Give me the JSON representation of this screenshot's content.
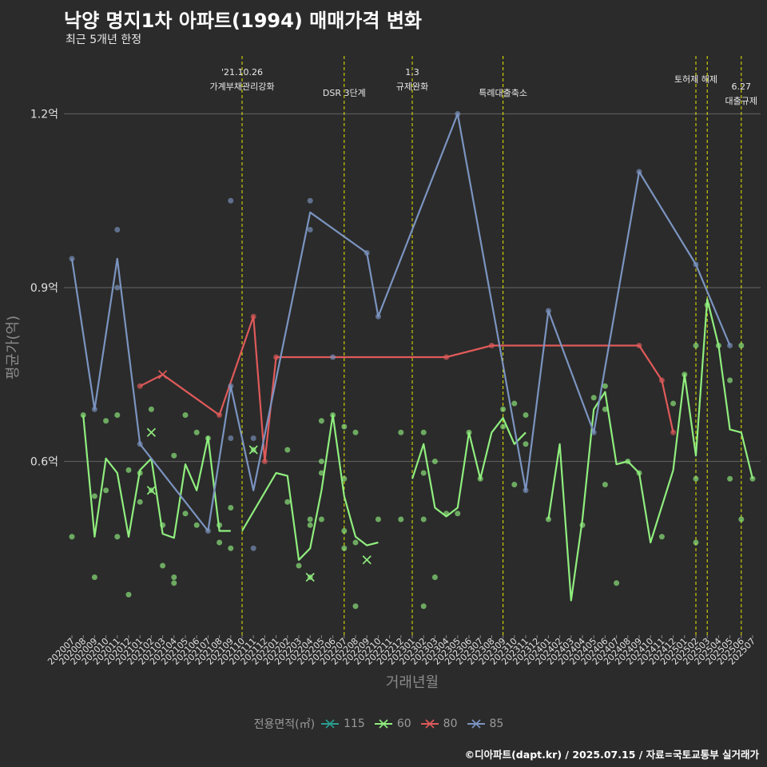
{
  "title": "낙양 명지1차 아파트(1994) 매매가격 변화",
  "subtitle": "최근 5개년 한정",
  "caption": "©디아파트(dapt.kr) / 2025.07.15 / 자료=국토교통부 실거래가",
  "legend_title": "전용면적(㎡)",
  "chart_data": {
    "type": "line",
    "xlabel": "거래년월",
    "ylabel": "평균가(억)",
    "ylim": [
      0.3,
      1.3
    ],
    "y_ticks": [
      {
        "value": 0.6,
        "label": "0.6억"
      },
      {
        "value": 0.9,
        "label": "0.9억"
      },
      {
        "value": 1.2,
        "label": "1.2억"
      }
    ],
    "grid": true,
    "legend_position": "bottom",
    "categories": [
      "202007",
      "202008",
      "202009",
      "202010",
      "202011",
      "202012",
      "202101",
      "202102",
      "202103",
      "202104",
      "202105",
      "202106",
      "202107",
      "202108",
      "202109",
      "202110",
      "202111",
      "202112",
      "202201",
      "202202",
      "202203",
      "202204",
      "202205",
      "202206",
      "202207",
      "202208",
      "202209",
      "202210",
      "202211",
      "202212",
      "202301",
      "202302",
      "202303",
      "202304",
      "202305",
      "202306",
      "202307",
      "202308",
      "202309",
      "202310",
      "202311",
      "202312",
      "202401",
      "202402",
      "202403",
      "202404",
      "202405",
      "202406",
      "202407",
      "202408",
      "202409",
      "202410",
      "202411",
      "202412",
      "202501",
      "202502",
      "202503",
      "202504",
      "202505",
      "202506",
      "202507"
    ],
    "events": [
      {
        "x": "202110",
        "label1": "'21.10.26",
        "label2": "가계부채관리강화"
      },
      {
        "x": "202207",
        "label1": "",
        "label2": "DSR 3단계"
      },
      {
        "x": "202301",
        "label1": "1.3",
        "label2": "규제완화"
      },
      {
        "x": "202309",
        "label1": "",
        "label2": "특례대출축소"
      },
      {
        "x": "202502",
        "label1": "",
        "label2": "토허제 해제"
      },
      {
        "x": "202503",
        "label1": "",
        "label2": ""
      },
      {
        "x": "202506",
        "label1": "6.27",
        "label2": "대출규제"
      }
    ],
    "series": [
      {
        "name": "115",
        "color": "#2a9d8f",
        "line": [],
        "points": [],
        "cancelled": []
      },
      {
        "name": "60",
        "color": "#90ee7e",
        "line": [
          [
            "202008",
            0.68
          ],
          [
            "202009",
            0.47
          ],
          [
            "202010",
            0.605
          ],
          [
            "202011",
            0.58
          ],
          [
            "202012",
            0.47
          ],
          [
            "202101",
            0.585
          ],
          [
            "202102",
            0.605
          ],
          [
            "202103",
            0.475
          ],
          [
            "202104",
            0.468
          ],
          [
            "202105",
            0.595
          ],
          [
            "202106",
            0.55
          ],
          [
            "202107",
            0.642
          ],
          [
            "202108",
            0.48
          ],
          [
            "202109",
            0.48
          ],
          [
            null,
            null
          ],
          [
            "202110",
            0.48
          ],
          [
            "202201",
            0.58
          ],
          [
            "202202",
            0.575
          ],
          [
            "202203",
            0.43
          ],
          [
            "202204",
            0.45
          ],
          [
            "202205",
            0.55
          ],
          [
            "202206",
            0.68
          ],
          [
            "202207",
            0.54
          ],
          [
            "202208",
            0.47
          ],
          [
            "202209",
            0.455
          ],
          [
            "202210",
            0.46
          ],
          [
            null,
            null
          ],
          [
            "202301",
            0.57
          ],
          [
            "202302",
            0.63
          ],
          [
            "202303",
            0.52
          ],
          [
            "202304",
            0.505
          ],
          [
            "202305",
            0.52
          ],
          [
            "202306",
            0.65
          ],
          [
            "202307",
            0.57
          ],
          [
            "202308",
            0.65
          ],
          [
            "202309",
            0.675
          ],
          [
            "202310",
            0.63
          ],
          [
            "202311",
            0.65
          ],
          [
            null,
            null
          ],
          [
            "202401",
            0.5
          ],
          [
            "202402",
            0.63
          ],
          [
            "202403",
            0.36
          ],
          [
            "202404",
            0.5
          ],
          [
            "202405",
            0.69
          ],
          [
            "202406",
            0.72
          ],
          [
            "202407",
            0.595
          ],
          [
            "202408",
            0.6
          ],
          [
            "202409",
            0.58
          ],
          [
            "202410",
            0.46
          ],
          [
            "202412",
            0.585
          ],
          [
            "202501",
            0.75
          ],
          [
            "202502",
            0.61
          ],
          [
            "202503",
            0.88
          ],
          [
            "202504",
            0.8
          ],
          [
            "202505",
            0.655
          ],
          [
            "202506",
            0.65
          ],
          [
            "202507",
            0.57
          ]
        ],
        "points": [
          [
            "202007",
            0.47
          ],
          [
            "202008",
            0.68
          ],
          [
            "202009",
            0.54
          ],
          [
            "202009",
            0.4
          ],
          [
            "202010",
            0.67
          ],
          [
            "202010",
            0.55
          ],
          [
            "202011",
            0.68
          ],
          [
            "202011",
            0.47
          ],
          [
            "202012",
            0.37
          ],
          [
            "202012",
            0.585
          ],
          [
            "202101",
            0.58
          ],
          [
            "202101",
            0.53
          ],
          [
            "202102",
            0.55
          ],
          [
            "202102",
            0.69
          ],
          [
            "202103",
            0.49
          ],
          [
            "202103",
            0.42
          ],
          [
            "202104",
            0.61
          ],
          [
            "202104",
            0.39
          ],
          [
            "202104",
            0.4
          ],
          [
            "202105",
            0.68
          ],
          [
            "202105",
            0.51
          ],
          [
            "202106",
            0.49
          ],
          [
            "202106",
            0.65
          ],
          [
            "202107",
            0.64
          ],
          [
            "202108",
            0.46
          ],
          [
            "202108",
            0.49
          ],
          [
            "202109",
            0.45
          ],
          [
            "202109",
            0.52
          ],
          [
            "202111",
            0.62
          ],
          [
            "202202",
            0.62
          ],
          [
            "202202",
            0.53
          ],
          [
            "202203",
            0.42
          ],
          [
            "202204",
            0.5
          ],
          [
            "202204",
            0.49
          ],
          [
            "202204",
            0.4
          ],
          [
            "202205",
            0.58
          ],
          [
            "202205",
            0.6
          ],
          [
            "202205",
            0.67
          ],
          [
            "202205",
            0.5
          ],
          [
            "202206",
            0.68
          ],
          [
            "202207",
            0.57
          ],
          [
            "202207",
            0.45
          ],
          [
            "202207",
            0.48
          ],
          [
            "202207",
            0.66
          ],
          [
            "202208",
            0.65
          ],
          [
            "202208",
            0.35
          ],
          [
            "202208",
            0.46
          ],
          [
            "202210",
            0.5
          ],
          [
            "202212",
            0.5
          ],
          [
            "202212",
            0.65
          ],
          [
            "202302",
            0.65
          ],
          [
            "202302",
            0.58
          ],
          [
            "202302",
            0.35
          ],
          [
            "202302",
            0.5
          ],
          [
            "202303",
            0.6
          ],
          [
            "202303",
            0.4
          ],
          [
            "202304",
            0.51
          ],
          [
            "202305",
            0.51
          ],
          [
            "202306",
            0.65
          ],
          [
            "202307",
            0.57
          ],
          [
            "202309",
            0.69
          ],
          [
            "202309",
            0.66
          ],
          [
            "202310",
            0.7
          ],
          [
            "202310",
            0.56
          ],
          [
            "202311",
            0.68
          ],
          [
            "202311",
            0.63
          ],
          [
            "202401",
            0.5
          ],
          [
            "202404",
            0.49
          ],
          [
            "202405",
            0.71
          ],
          [
            "202406",
            0.73
          ],
          [
            "202406",
            0.69
          ],
          [
            "202406",
            0.56
          ],
          [
            "202407",
            0.39
          ],
          [
            "202408",
            0.6
          ],
          [
            "202409",
            0.58
          ],
          [
            "202411",
            0.47
          ],
          [
            "202412",
            0.7
          ],
          [
            "202501",
            0.75
          ],
          [
            "202502",
            0.8
          ],
          [
            "202502",
            0.57
          ],
          [
            "202502",
            0.46
          ],
          [
            "202503",
            0.87
          ],
          [
            "202504",
            0.8
          ],
          [
            "202505",
            0.74
          ],
          [
            "202505",
            0.57
          ],
          [
            "202506",
            0.8
          ],
          [
            "202506",
            0.5
          ],
          [
            "202507",
            0.57
          ]
        ],
        "cancelled": [
          [
            "202102",
            0.65
          ],
          [
            "202102",
            0.55
          ],
          [
            "202111",
            0.62
          ],
          [
            "202204",
            0.4
          ],
          [
            "202209",
            0.43
          ]
        ]
      },
      {
        "name": "80",
        "color": "#e05a5a",
        "line": [
          [
            "202101",
            0.73
          ],
          [
            "202103",
            0.75
          ],
          [
            "202108",
            0.68
          ],
          [
            "202111",
            0.85
          ],
          [
            "202112",
            0.6
          ],
          [
            "202201",
            0.78
          ],
          [
            "202304",
            0.78
          ],
          [
            "202308",
            0.8
          ],
          [
            "202409",
            0.8
          ],
          [
            "202411",
            0.74
          ],
          [
            "202412",
            0.65
          ]
        ],
        "points": [
          [
            "202101",
            0.73
          ],
          [
            "202108",
            0.68
          ],
          [
            "202111",
            0.85
          ],
          [
            "202112",
            0.6
          ],
          [
            "202201",
            0.78
          ],
          [
            "202304",
            0.78
          ],
          [
            "202308",
            0.8
          ],
          [
            "202409",
            0.8
          ],
          [
            "202411",
            0.74
          ],
          [
            "202412",
            0.65
          ]
        ],
        "cancelled": [
          [
            "202103",
            0.75
          ]
        ]
      },
      {
        "name": "85",
        "color": "#7b94c0",
        "line": [
          [
            "202007",
            0.95
          ],
          [
            "202009",
            0.69
          ],
          [
            "202011",
            0.95
          ],
          [
            "202101",
            0.63
          ],
          [
            "202107",
            0.48
          ],
          [
            "202109",
            0.73
          ],
          [
            "202111",
            0.55
          ],
          [
            "202204",
            1.03
          ],
          [
            "202209",
            0.96
          ],
          [
            "202210",
            0.85
          ],
          [
            "202305",
            1.2
          ],
          [
            "202311",
            0.55
          ],
          [
            "202401",
            0.86
          ],
          [
            "202405",
            0.65
          ],
          [
            "202409",
            1.1
          ],
          [
            "202502",
            0.94
          ],
          [
            "202505",
            0.8
          ]
        ],
        "points": [
          [
            "202007",
            0.95
          ],
          [
            "202009",
            0.69
          ],
          [
            "202011",
            1.0
          ],
          [
            "202011",
            0.9
          ],
          [
            "202101",
            0.63
          ],
          [
            "202107",
            0.48
          ],
          [
            "202109",
            1.05
          ],
          [
            "202109",
            0.64
          ],
          [
            "202109",
            0.73
          ],
          [
            "202111",
            0.64
          ],
          [
            "202111",
            0.45
          ],
          [
            "202204",
            1.05
          ],
          [
            "202204",
            1.0
          ],
          [
            "202206",
            0.78
          ],
          [
            "202209",
            0.96
          ],
          [
            "202210",
            0.85
          ],
          [
            "202305",
            1.2
          ],
          [
            "202311",
            0.55
          ],
          [
            "202401",
            0.86
          ],
          [
            "202405",
            0.65
          ],
          [
            "202409",
            1.1
          ],
          [
            "202502",
            0.94
          ],
          [
            "202505",
            0.8
          ]
        ],
        "cancelled": []
      }
    ]
  }
}
